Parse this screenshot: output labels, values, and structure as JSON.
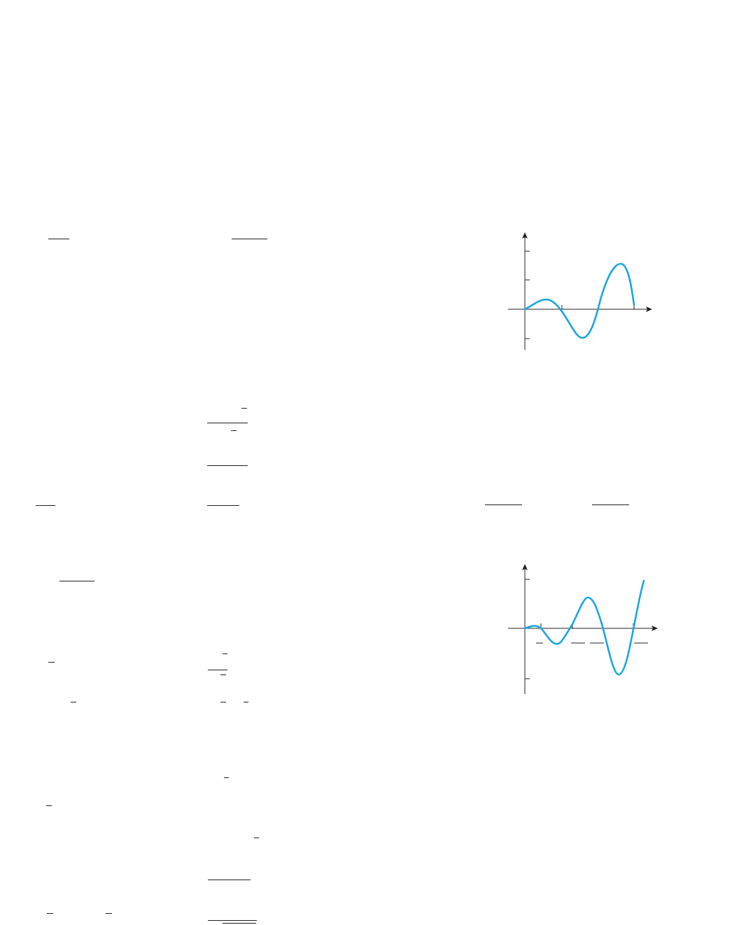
{
  "colors": {
    "curve": "#1aa6df",
    "ink": "#231f20"
  },
  "graphs": [
    {
      "name": "graph-top"
    },
    {
      "name": "graph-bottom"
    }
  ]
}
